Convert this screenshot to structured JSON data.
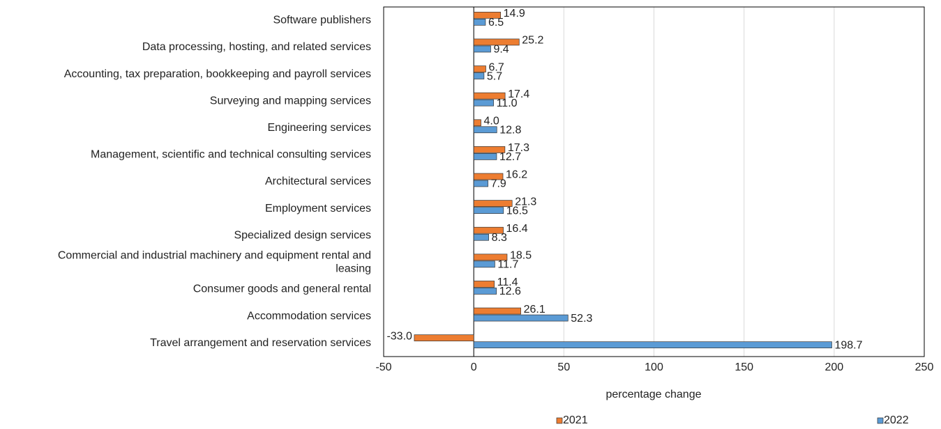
{
  "chart_data": {
    "type": "hbar",
    "categories": [
      "Software publishers",
      "Data processing, hosting, and related services",
      "Accounting, tax preparation, bookkeeping and payroll services",
      "Surveying and mapping services",
      "Engineering services",
      "Management, scientific and technical consulting services",
      "Architectural services",
      "Employment services",
      "Specialized design services",
      "Commercial and industrial machinery and equipment rental and leasing",
      "Consumer goods and general rental",
      "Accommodation services",
      "Travel arrangement and reservation services"
    ],
    "series": [
      {
        "name": "2021",
        "color": "#ed7d31",
        "values": [
          14.9,
          25.2,
          6.7,
          17.4,
          4.0,
          17.3,
          16.2,
          21.3,
          16.4,
          18.5,
          11.4,
          26.1,
          -33.0
        ],
        "value_labels": [
          "14.9",
          "25.2",
          "6.7",
          "17.4",
          "4.0",
          "17.3",
          "16.2",
          "21.3",
          "16.4",
          "18.5",
          "11.4",
          "26.1",
          "-33.0"
        ]
      },
      {
        "name": "2022",
        "color": "#5b9bd5",
        "values": [
          6.5,
          9.4,
          5.7,
          11.0,
          12.8,
          12.7,
          7.9,
          16.5,
          8.3,
          11.7,
          12.6,
          52.3,
          198.7
        ],
        "value_labels": [
          "6.5",
          "9.4",
          "5.7",
          "11.0",
          "12.8",
          "12.7",
          "7.9",
          "16.5",
          "8.3",
          "11.7",
          "12.6",
          "52.3",
          "198.7"
        ]
      }
    ],
    "xlabel": "percentage change",
    "xlim": [
      -50,
      250
    ],
    "xticks": [
      -50,
      0,
      50,
      100,
      150,
      200,
      250
    ],
    "grid": true,
    "legend": "bottom"
  }
}
